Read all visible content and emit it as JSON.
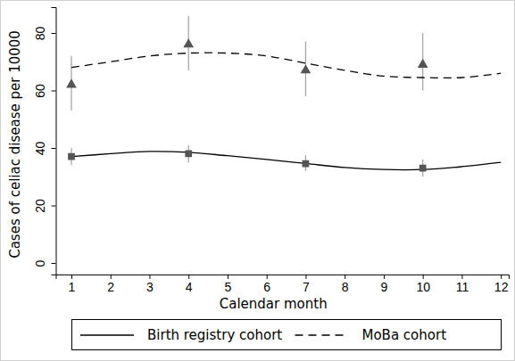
{
  "chart_data": {
    "type": "line",
    "x_label": "Calendar month",
    "y_label": "Cases of celiac disease per 10000",
    "x": [
      1,
      2,
      3,
      4,
      5,
      6,
      7,
      8,
      9,
      10,
      11,
      12
    ],
    "xlim": [
      0.6,
      12.2
    ],
    "xticks": [
      1,
      2,
      3,
      4,
      5,
      6,
      7,
      8,
      9,
      10,
      11,
      12
    ],
    "ylim": [
      -4,
      89
    ],
    "yticks": [
      0,
      20,
      40,
      60,
      80
    ],
    "grid": false,
    "legend": "bottom",
    "series": [
      {
        "name": "Birth registry cohort",
        "color": "#000000",
        "line_style": "solid",
        "marker": "square",
        "values": [
          37,
          38,
          38.8,
          38.5,
          37.3,
          36,
          34.6,
          33.2,
          32.5,
          32.5,
          33.5,
          35
        ],
        "observed": {
          "x": [
            1,
            4,
            7,
            10
          ],
          "values": [
            37,
            38,
            34.5,
            33
          ],
          "lower": [
            34,
            35,
            32,
            30
          ],
          "upper": [
            40,
            41,
            37.5,
            36
          ]
        }
      },
      {
        "name": "MoBa cohort",
        "color": "#000000",
        "line_style": "dashed",
        "marker": "triangle",
        "values": [
          68,
          70,
          72,
          73,
          73,
          72,
          69.5,
          67,
          65,
          64.5,
          64.5,
          66
        ],
        "observed": {
          "x": [
            1,
            4,
            7,
            10
          ],
          "values": [
            62,
            76,
            67,
            69
          ],
          "lower": [
            53,
            67,
            58,
            60
          ],
          "upper": [
            72,
            86,
            77,
            80
          ]
        }
      }
    ]
  }
}
